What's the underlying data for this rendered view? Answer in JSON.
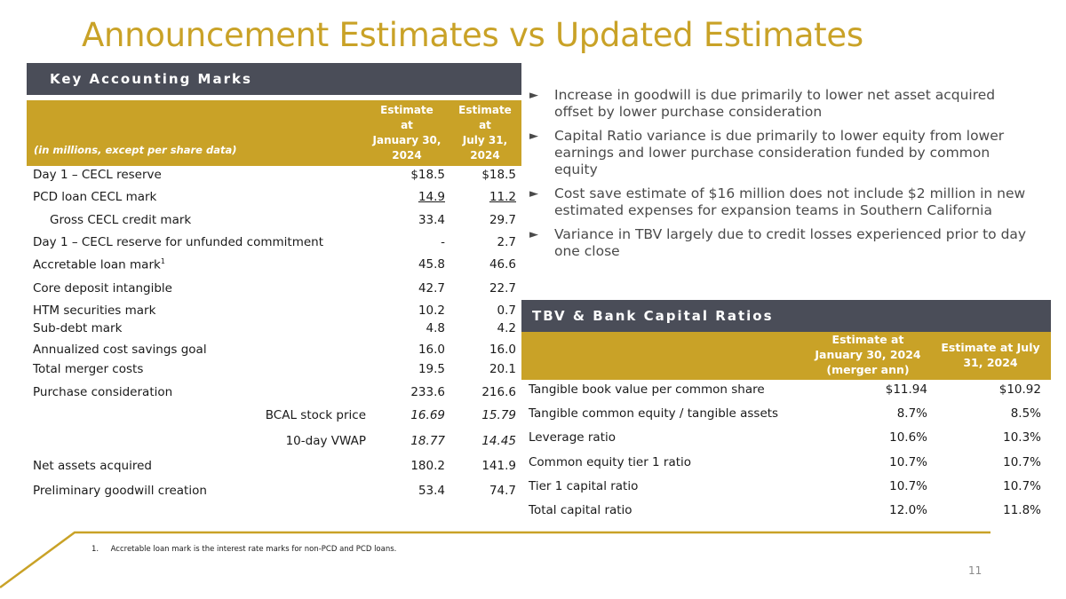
{
  "title": "Announcement Estimates vs Updated Estimates",
  "key_marks": {
    "section_title": "Key Accounting Marks",
    "header_label": "(in millions, except per share data)",
    "col1_lines": [
      "Estimate",
      "at",
      "January 30,",
      "2024"
    ],
    "col2_lines": [
      "Estimate",
      "at",
      "July 31,",
      "2024"
    ],
    "rows": [
      {
        "label": "Day 1 – CECL reserve",
        "v1": "$18.5",
        "v2": "$18.5"
      },
      {
        "label": "PCD loan CECL mark",
        "v1": "14.9",
        "v2": "11.2"
      },
      {
        "label": "Gross CECL credit mark",
        "v1": "33.4",
        "v2": "29.7"
      },
      {
        "label": "Day 1 – CECL reserve for unfunded commitment",
        "v1": "-",
        "v2": "2.7"
      },
      {
        "label": "Accretable loan mark",
        "sup": "1",
        "v1": "45.8",
        "v2": "46.6"
      },
      {
        "label": "Core deposit intangible",
        "v1": "42.7",
        "v2": "22.7"
      },
      {
        "label": "HTM securities mark",
        "v1": "10.2",
        "v2": "0.7"
      },
      {
        "label": "Sub-debt mark",
        "v1": "4.8",
        "v2": "4.2"
      },
      {
        "label": "Annualized cost savings goal",
        "v1": "16.0",
        "v2": "16.0"
      },
      {
        "label": "Total merger costs",
        "v1": "19.5",
        "v2": "20.1"
      },
      {
        "label": "Purchase consideration",
        "v1": "233.6",
        "v2": "216.6"
      },
      {
        "label": "BCAL stock price",
        "v1": "16.69",
        "v2": "15.79"
      },
      {
        "label": "10-day VWAP",
        "v1": "18.77",
        "v2": "14.45"
      },
      {
        "label": "Net assets acquired",
        "v1": "180.2",
        "v2": "141.9"
      },
      {
        "label": "Preliminary goodwill creation",
        "v1": "53.4",
        "v2": "74.7"
      }
    ]
  },
  "bullets": {
    "marker": "►",
    "items": [
      "Increase in goodwill is due primarily to lower net asset acquired offset by lower purchase consideration",
      "Capital Ratio variance is due primarily to lower equity from lower earnings and lower purchase consideration funded by common equity",
      "Cost save estimate of $16 million does not include $2 million in new estimated expenses for expansion teams in Southern California",
      "Variance in TBV largely due to credit losses experienced prior to day one close"
    ]
  },
  "tbv": {
    "section_title": "TBV & Bank Capital Ratios",
    "col1_lines": [
      "Estimate at",
      "January 30, 2024",
      "(merger ann)"
    ],
    "col2_lines": [
      "Estimate at July",
      "31, 2024"
    ],
    "rows": [
      {
        "label": "Tangible book value per common share",
        "v1": "$11.94",
        "v2": "$10.92"
      },
      {
        "label": "Tangible common equity / tangible assets",
        "v1": "8.7%",
        "v2": "8.5%"
      },
      {
        "label": "Leverage ratio",
        "v1": "10.6%",
        "v2": "10.3%"
      },
      {
        "label": "Common equity tier 1 ratio",
        "v1": "10.7%",
        "v2": "10.7%"
      },
      {
        "label": "Tier 1 capital ratio",
        "v1": "10.7%",
        "v2": "10.7%"
      },
      {
        "label": "Total capital ratio",
        "v1": "12.0%",
        "v2": "11.8%"
      }
    ]
  },
  "footnote": "1.     Accretable loan mark is the interest rate marks for non-PCD and PCD loans.",
  "page_number": "11",
  "colors": {
    "gold": "#c9a227",
    "slate": "#4a4d58"
  }
}
